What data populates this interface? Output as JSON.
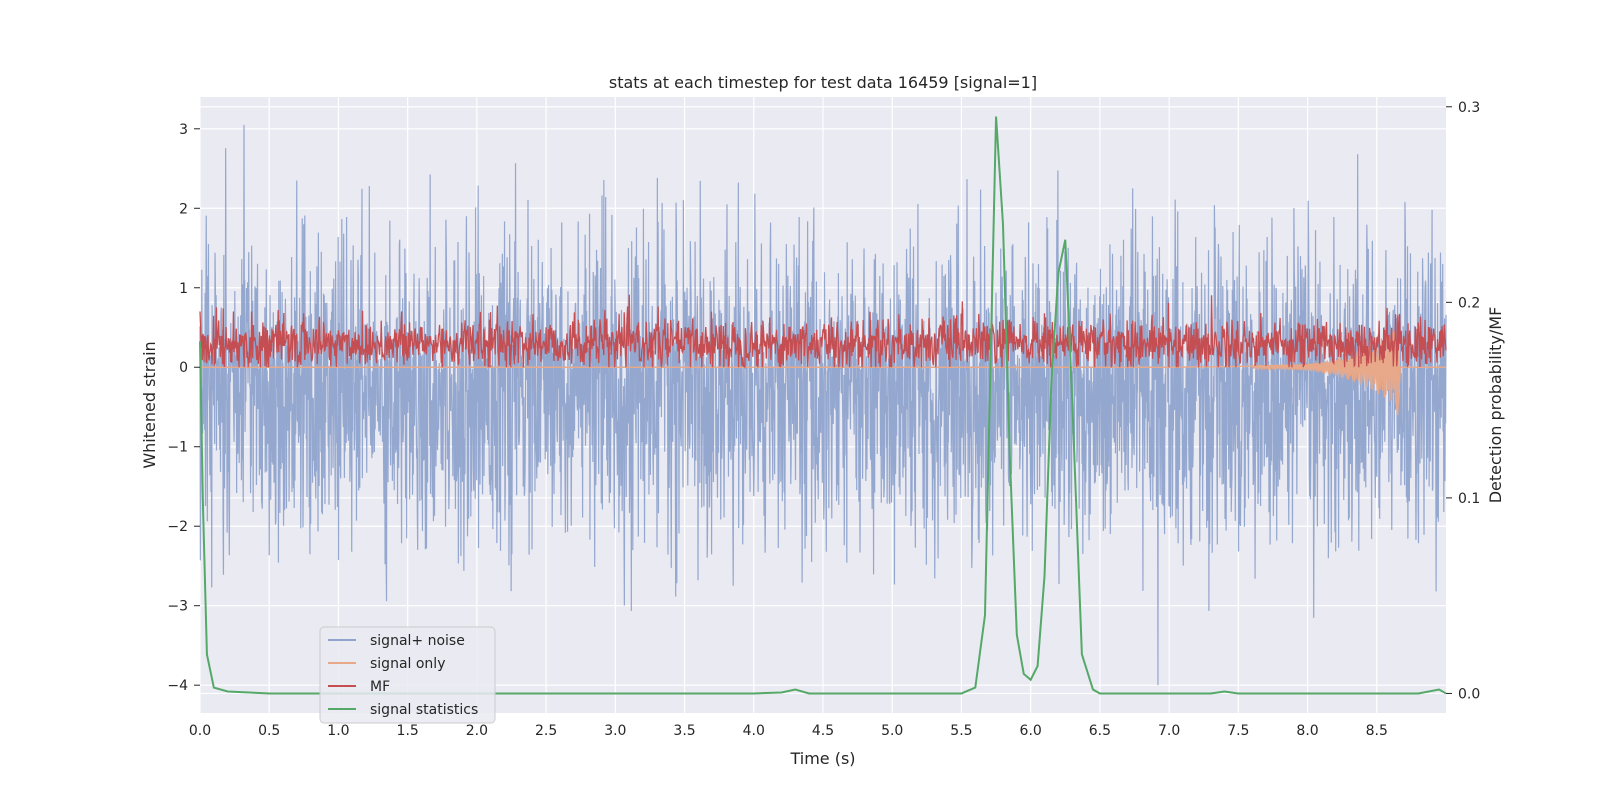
{
  "chart_data": {
    "type": "line",
    "title": "stats at each timestep for test data 16459 [signal=1]",
    "xlabel": "Time (s)",
    "ylabel": "Whitened strain",
    "y2label": "Detection probability/MF",
    "xlim": [
      0.0,
      9.0
    ],
    "ylim": [
      -4.35,
      3.4
    ],
    "y2lim": [
      -0.01,
      0.305
    ],
    "xticks": [
      "0.0",
      "0.5",
      "1.0",
      "1.5",
      "2.0",
      "2.5",
      "3.0",
      "3.5",
      "4.0",
      "4.5",
      "5.0",
      "5.5",
      "6.0",
      "6.5",
      "7.0",
      "7.5",
      "8.0",
      "8.5"
    ],
    "yticks": [
      "3",
      "2",
      "1",
      "0",
      "−1",
      "−2",
      "−3",
      "−4"
    ],
    "y2ticks": [
      "0.3",
      "0.2",
      "0.1",
      "0.0"
    ],
    "legend": {
      "location": "lower-left",
      "entries": [
        "signal+ noise",
        "signal only",
        "MF",
        "signal statistics"
      ]
    },
    "series": [
      {
        "name": "signal+ noise",
        "axis": "left",
        "color": "#8fa3cc",
        "description": "whitened noisy strain, roughly between -3 and 3, mean near -0.3",
        "approx_range": [
          -4.0,
          3.05
        ]
      },
      {
        "name": "signal only",
        "axis": "left",
        "color": "#e8a88a",
        "description": "chirp near zero, growing amplitude up to t≈8.65 s",
        "points": [
          [
            0.0,
            0.0
          ],
          [
            5.0,
            0.0
          ],
          [
            6.0,
            0.0
          ],
          [
            7.0,
            0.0
          ],
          [
            7.5,
            0.01
          ],
          [
            8.0,
            0.03
          ],
          [
            8.3,
            0.08
          ],
          [
            8.5,
            0.2
          ],
          [
            8.6,
            0.35
          ],
          [
            8.65,
            -0.6
          ],
          [
            8.67,
            0.0
          ],
          [
            9.0,
            0.0
          ]
        ]
      },
      {
        "name": "MF",
        "axis": "left",
        "color": "#c44e52",
        "description": "matched-filter output, positive between 0 and ~0.9, mean ~0.3",
        "approx_range": [
          0.0,
          0.92
        ]
      },
      {
        "name": "signal statistics",
        "axis": "right",
        "color": "#55a868",
        "points": [
          [
            0.0,
            0.18
          ],
          [
            0.02,
            0.1
          ],
          [
            0.05,
            0.02
          ],
          [
            0.1,
            0.003
          ],
          [
            0.2,
            0.001
          ],
          [
            0.5,
            0.0
          ],
          [
            4.0,
            0.0
          ],
          [
            4.2,
            0.0005
          ],
          [
            4.3,
            0.002
          ],
          [
            4.4,
            0.0
          ],
          [
            5.5,
            0.0
          ],
          [
            5.6,
            0.003
          ],
          [
            5.67,
            0.04
          ],
          [
            5.72,
            0.2
          ],
          [
            5.75,
            0.295
          ],
          [
            5.8,
            0.24
          ],
          [
            5.85,
            0.12
          ],
          [
            5.9,
            0.03
          ],
          [
            5.95,
            0.01
          ],
          [
            6.0,
            0.007
          ],
          [
            6.05,
            0.014
          ],
          [
            6.1,
            0.06
          ],
          [
            6.15,
            0.16
          ],
          [
            6.2,
            0.215
          ],
          [
            6.25,
            0.232
          ],
          [
            6.3,
            0.15
          ],
          [
            6.37,
            0.02
          ],
          [
            6.45,
            0.002
          ],
          [
            6.5,
            0.0
          ],
          [
            7.3,
            0.0
          ],
          [
            7.4,
            0.001
          ],
          [
            7.5,
            0.0
          ],
          [
            8.8,
            0.0
          ],
          [
            8.95,
            0.002
          ],
          [
            9.0,
            0.0
          ]
        ]
      }
    ]
  }
}
